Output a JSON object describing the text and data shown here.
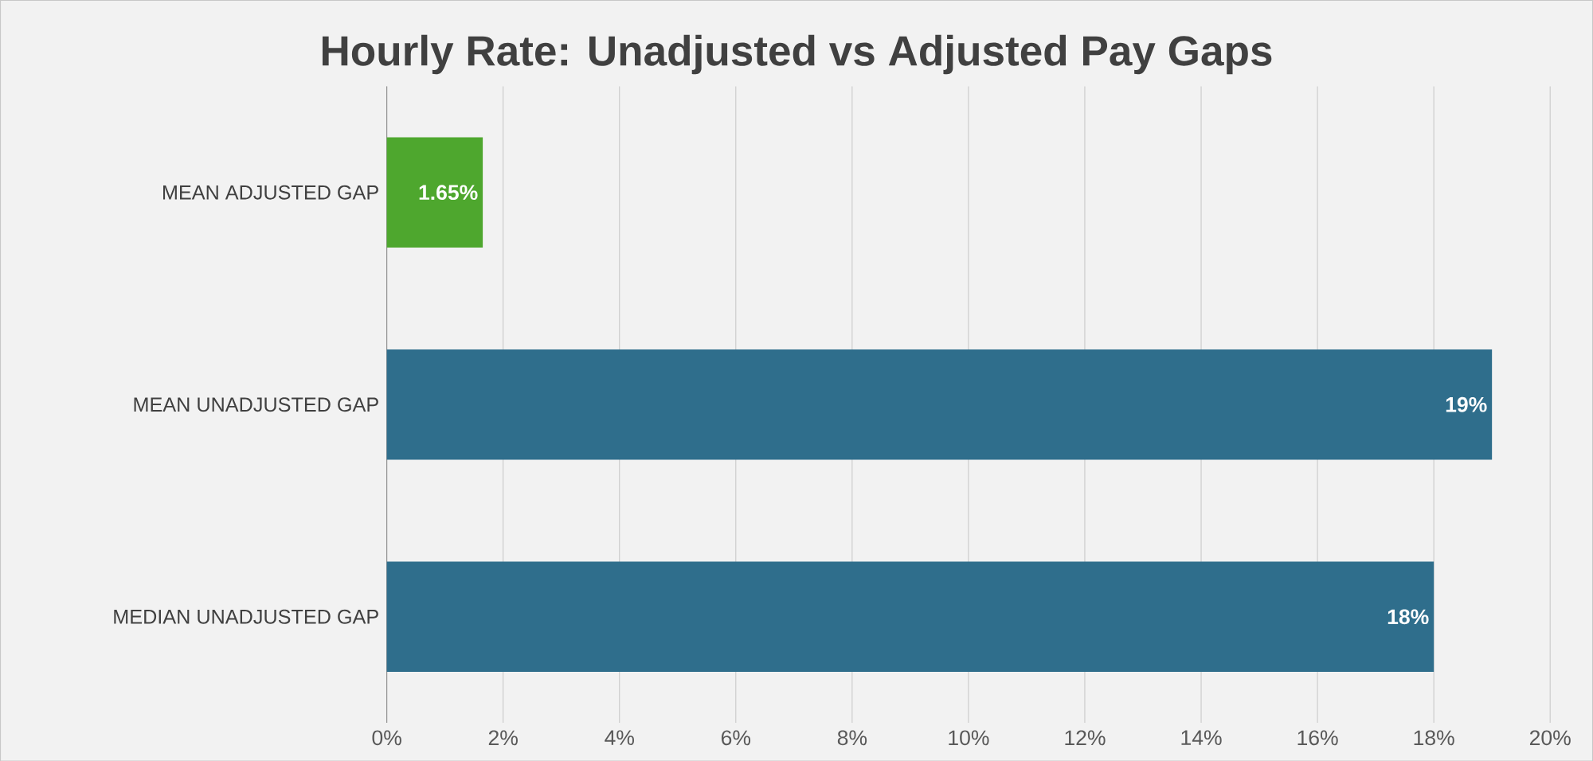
{
  "chart_data": {
    "type": "bar",
    "title": "Hourly Rate: Unadjusted vs Adjusted Pay Gaps",
    "orientation": "horizontal",
    "categories": [
      "MEAN ADJUSTED GAP",
      "MEAN UNADJUSTED GAP",
      "MEDIAN UNADJUSTED GAP"
    ],
    "values": [
      1.65,
      19,
      18
    ],
    "colors": [
      "#4ea72e",
      "#2f6e8c",
      "#2f6e8c"
    ],
    "value_labels": [
      "1.65%",
      "19%",
      "18%"
    ],
    "xlim": [
      0,
      20
    ],
    "xticks": [
      {
        "value": 0,
        "label": "0%"
      },
      {
        "value": 2,
        "label": "2%"
      },
      {
        "value": 4,
        "label": "4%"
      },
      {
        "value": 6,
        "label": "6%"
      },
      {
        "value": 8,
        "label": "8%"
      },
      {
        "value": 10,
        "label": "10%"
      },
      {
        "value": 12,
        "label": "12%"
      },
      {
        "value": 14,
        "label": "14%"
      },
      {
        "value": 16,
        "label": "16%"
      },
      {
        "value": 18,
        "label": "18%"
      },
      {
        "value": 20,
        "label": "20%"
      }
    ],
    "grid": "x"
  }
}
